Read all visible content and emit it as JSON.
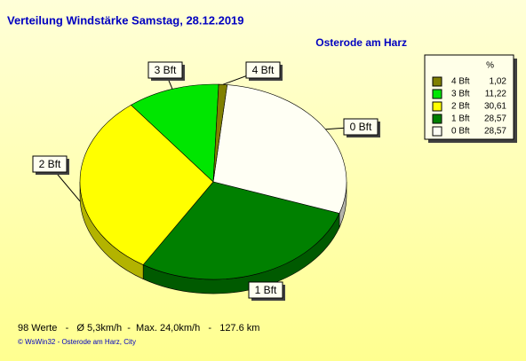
{
  "chart_data": {
    "type": "pie",
    "title": "Verteilung Windstärke  Samstag, 28.12.2019",
    "subtitle": "Osterode am Harz",
    "categories": [
      "4 Bft",
      "3 Bft",
      "2 Bft",
      "1 Bft",
      "0 Bft"
    ],
    "values": [
      1.02,
      11.22,
      30.61,
      28.57,
      28.57
    ],
    "value_labels": [
      "1,02",
      "11,22",
      "30,61",
      "28,57",
      "28,57"
    ],
    "colors": [
      "#808000",
      "#00e600",
      "#ffff00",
      "#008000",
      "#fffff4"
    ],
    "legend_unit": "%",
    "footer": "98 Werte   -   Ø 5,3km/h  -  Max. 24,0km/h   -   127.6 km",
    "credit": "© WsWin32  -  Osterode am Harz, City"
  }
}
